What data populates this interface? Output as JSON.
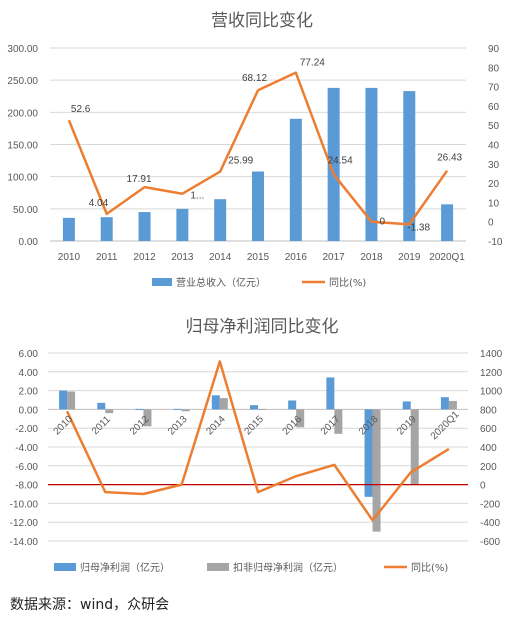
{
  "chart_data": [
    {
      "type": "bar",
      "title": "营收同比变化",
      "categories": [
        "2010",
        "2011",
        "2012",
        "2013",
        "2014",
        "2015",
        "2016",
        "2017",
        "2018",
        "2019",
        "2020Q1"
      ],
      "ylim": [
        0,
        300
      ],
      "y_ticks": [
        "0.00",
        "50.00",
        "100.00",
        "150.00",
        "200.00",
        "250.00",
        "300.00"
      ],
      "y2lim": [
        -10,
        90
      ],
      "y2_ticks": [
        "-10",
        "0",
        "10",
        "20",
        "30",
        "40",
        "50",
        "60",
        "70",
        "80",
        "90"
      ],
      "series": [
        {
          "name": "营业总收入（亿元）",
          "kind": "bar",
          "axis": "left",
          "color": "#5B9BD5",
          "values": [
            36,
            37,
            45,
            50,
            65,
            108,
            190,
            238,
            238,
            233,
            57
          ]
        },
        {
          "name": "同比(%)",
          "kind": "line",
          "axis": "right",
          "color": "#ED7D31",
          "values": [
            52.6,
            4.04,
            17.91,
            14.5,
            25.99,
            68.12,
            77.24,
            24.54,
            0,
            -1.38,
            26.43
          ],
          "labels": [
            "52.6",
            "4.04",
            "17.91",
            "1...",
            "25.99",
            "68.12",
            "77.24",
            "24.54",
            "0",
            "-1.38",
            "26.43"
          ]
        }
      ],
      "legend": "bottom",
      "grid": true
    },
    {
      "type": "bar",
      "title": "归母净利润同比变化",
      "categories": [
        "2010",
        "2011",
        "2012",
        "2013",
        "2014",
        "2015",
        "2016",
        "2017",
        "2018",
        "2019",
        "2020Q1"
      ],
      "ylim": [
        -14,
        6
      ],
      "y_ticks": [
        "6.00",
        "4.00",
        "2.00",
        "0.00",
        "-2.00",
        "-4.00",
        "-6.00",
        "-8.00",
        "-10.00",
        "-12.00",
        "-14.00"
      ],
      "y2lim": [
        -600,
        1400
      ],
      "y2_ticks": [
        "1400",
        "1200",
        "1000",
        "800",
        "600",
        "400",
        "200",
        "0",
        "-200",
        "-400",
        "-600"
      ],
      "series": [
        {
          "name": "归母净利润（亿元）",
          "kind": "bar",
          "axis": "left",
          "color": "#5B9BD5",
          "values": [
            2.0,
            0.7,
            0.05,
            0.05,
            1.5,
            0.45,
            0.95,
            3.4,
            -9.3,
            0.85,
            1.3
          ]
        },
        {
          "name": "扣非归母净利润（亿元）",
          "kind": "bar",
          "axis": "left",
          "color": "#A5A5A5",
          "values": [
            1.9,
            -0.4,
            -1.8,
            -0.2,
            1.2,
            0.05,
            -1.9,
            -2.6,
            -13.0,
            -8.0,
            0.9
          ]
        },
        {
          "name": "同比(%)",
          "kind": "line",
          "axis": "right",
          "color": "#ED7D31",
          "values": [
            780,
            -80,
            -100,
            0,
            1310,
            -80,
            90,
            210,
            -380,
            130,
            380
          ]
        }
      ],
      "reference_line": {
        "axis": "left",
        "value": -8,
        "color": "#C00000"
      },
      "legend": "bottom",
      "grid": true
    }
  ],
  "source": "数据来源：wind，众研会"
}
